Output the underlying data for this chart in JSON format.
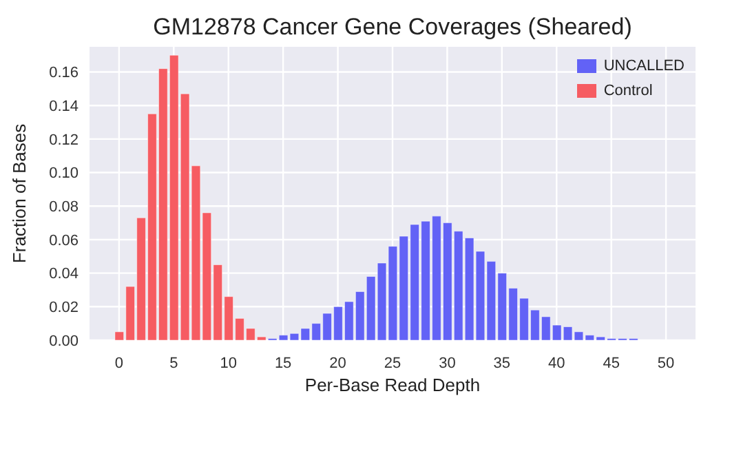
{
  "chart_data": {
    "type": "bar",
    "title": "GM12878 Cancer Gene Coverages (Sheared)",
    "xlabel": "Per-Base Read Depth",
    "ylabel": "Fraction of Bases",
    "series": [
      {
        "name": "UNCALLED",
        "color": "#6262f6",
        "x": [
          14,
          15,
          16,
          17,
          18,
          19,
          20,
          21,
          22,
          23,
          24,
          25,
          26,
          27,
          28,
          29,
          30,
          31,
          32,
          33,
          34,
          35,
          36,
          37,
          38,
          39,
          40,
          41,
          42,
          43,
          44,
          45,
          46,
          47,
          48,
          49
        ],
        "values": [
          0.001,
          0.003,
          0.004,
          0.007,
          0.01,
          0.016,
          0.02,
          0.023,
          0.029,
          0.038,
          0.046,
          0.056,
          0.062,
          0.069,
          0.071,
          0.074,
          0.07,
          0.065,
          0.061,
          0.053,
          0.047,
          0.04,
          0.031,
          0.025,
          0.018,
          0.014,
          0.009,
          0.008,
          0.005,
          0.003,
          0.002,
          0.001,
          0.001,
          0.001,
          0.0,
          0.0
        ]
      },
      {
        "name": "Control",
        "color": "#f65c62",
        "x": [
          0,
          1,
          2,
          3,
          4,
          5,
          6,
          7,
          8,
          9,
          10,
          11,
          12,
          13
        ],
        "values": [
          0.005,
          0.032,
          0.073,
          0.135,
          0.162,
          0.17,
          0.147,
          0.104,
          0.076,
          0.045,
          0.026,
          0.013,
          0.007,
          0.002
        ]
      }
    ],
    "xlim": [
      -2.7,
      52.7
    ],
    "xticks": [
      0,
      5,
      10,
      15,
      20,
      25,
      30,
      35,
      40,
      45,
      50
    ],
    "ylim": [
      0,
      0.175
    ],
    "yticks": [
      {
        "value": 0,
        "label": "0.00"
      },
      {
        "value": 0.02,
        "label": "0.02"
      },
      {
        "value": 0.04,
        "label": "0.04"
      },
      {
        "value": 0.06,
        "label": "0.06"
      },
      {
        "value": 0.08,
        "label": "0.08"
      },
      {
        "value": 0.1,
        "label": "0.10"
      },
      {
        "value": 0.12,
        "label": "0.12"
      },
      {
        "value": 0.14,
        "label": "0.14"
      },
      {
        "value": 0.16,
        "label": "0.16"
      }
    ],
    "grid": true,
    "legend": "top right"
  }
}
